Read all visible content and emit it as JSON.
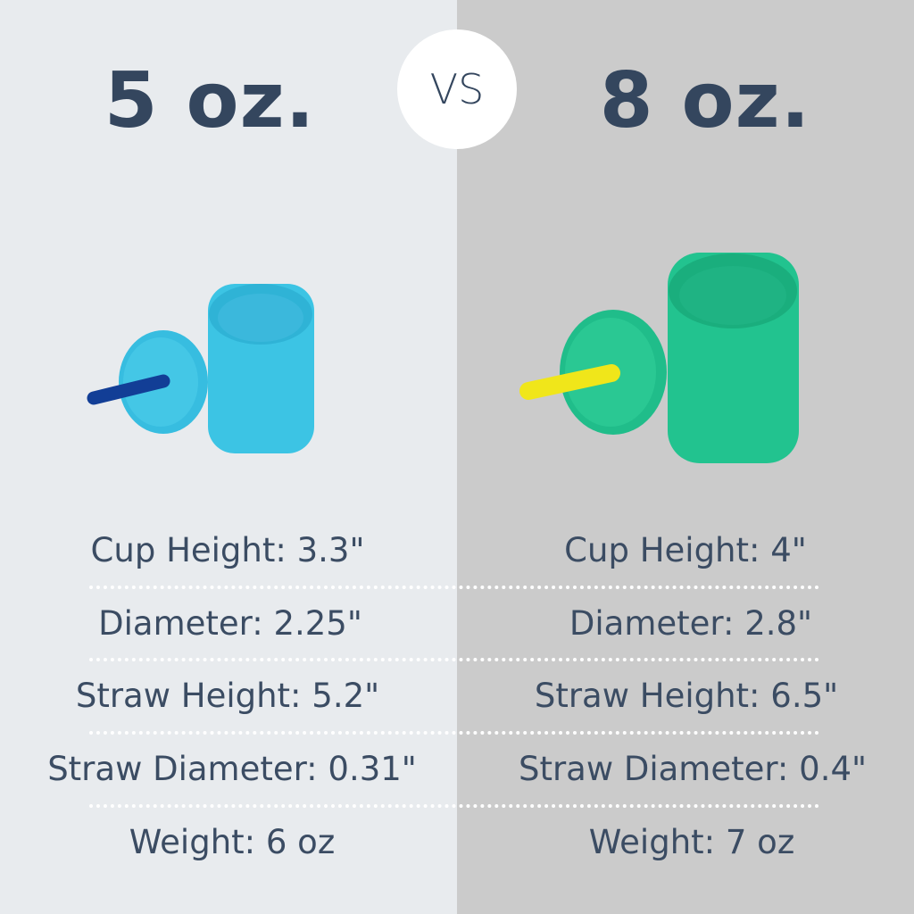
{
  "vs_label": "VS",
  "left": {
    "title": "5 oz.",
    "cup_color": "#3cc4e4",
    "straw_color": "#123e96",
    "specs": [
      "Cup Height: 3.3\"",
      "Diameter: 2.25\"",
      "Straw Height: 5.2\"",
      "Straw Diameter: 0.31\"",
      "Weight: 6 oz"
    ]
  },
  "right": {
    "title": "8 oz.",
    "cup_color": "#22c38f",
    "straw_color": "#f0e61a",
    "specs": [
      "Cup Height: 4\"",
      "Diameter: 2.8\"",
      "Straw Height: 6.5\"",
      "Straw Diameter: 0.4\"",
      "Weight: 7 oz"
    ]
  }
}
